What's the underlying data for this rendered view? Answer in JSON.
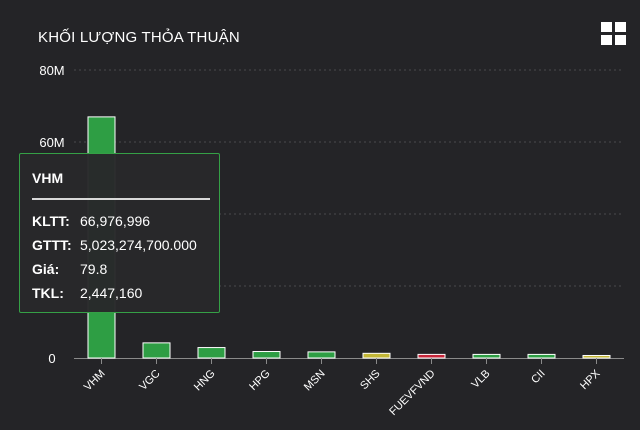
{
  "header": {
    "title": "KHỐI LƯỢNG THỎA THUẬN",
    "menu_icon": "grid-menu-icon"
  },
  "chart_data": {
    "type": "bar",
    "title": "KHỐI LƯỢNG THỎA THUẬN",
    "xlabel": "",
    "ylabel": "",
    "ylim": [
      0,
      80000000
    ],
    "y_ticks": [
      {
        "value": 0,
        "label": "0"
      },
      {
        "value": 60000000,
        "label": "60M"
      },
      {
        "value": 80000000,
        "label": "80M"
      }
    ],
    "grid": true,
    "categories": [
      "VHM",
      "VGC",
      "HNG",
      "HPG",
      "MSN",
      "SHS",
      "FUEVFVND",
      "VLB",
      "CII",
      "HPX"
    ],
    "values": [
      66976996,
      4200000,
      2900000,
      1800000,
      1700000,
      1300000,
      1000000,
      1000000,
      1000000,
      700000
    ],
    "bar_colors": [
      "#2e9e44",
      "#2e9e44",
      "#2e9e44",
      "#2e9e44",
      "#2e9e44",
      "#c2b636",
      "#c7263a",
      "#2e9e44",
      "#2e9e44",
      "#c2b636"
    ]
  },
  "tooltip": {
    "name": "VHM",
    "rows": [
      {
        "label": "KLTT:",
        "value": "66,976,996"
      },
      {
        "label": "GTTT:",
        "value": "5,023,274,700.000"
      },
      {
        "label": "Giá:",
        "value": "79.8"
      },
      {
        "label": "TKL:",
        "value": "2,447,160"
      }
    ],
    "border_color": "#35a046"
  }
}
